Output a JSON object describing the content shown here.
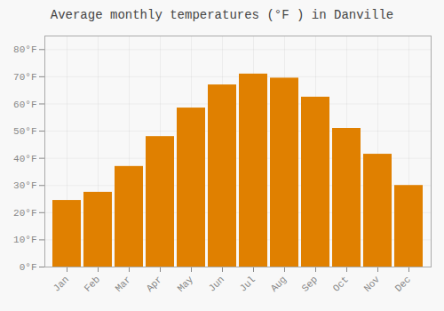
{
  "chart_data": {
    "type": "bar",
    "title": "Average monthly temperatures (°F ) in Danville",
    "categories": [
      "Jan",
      "Feb",
      "Mar",
      "Apr",
      "May",
      "Jun",
      "Jul",
      "Aug",
      "Sep",
      "Oct",
      "Nov",
      "Dec"
    ],
    "values": [
      24.5,
      27.5,
      37.0,
      48.0,
      58.5,
      67.0,
      71.0,
      69.5,
      62.5,
      51.0,
      41.5,
      30.0
    ],
    "color": "#E08000",
    "ylim": [
      0,
      85
    ],
    "yticks": [
      {
        "value": 0,
        "label": "0°F"
      },
      {
        "value": 10,
        "label": "10°F"
      },
      {
        "value": 20,
        "label": "20°F"
      },
      {
        "value": 30,
        "label": "30°F"
      },
      {
        "value": 40,
        "label": "40°F"
      },
      {
        "value": 50,
        "label": "50°F"
      },
      {
        "value": 60,
        "label": "60°F"
      },
      {
        "value": 70,
        "label": "70°F"
      },
      {
        "value": 80,
        "label": "80°F"
      }
    ],
    "grid": true
  }
}
